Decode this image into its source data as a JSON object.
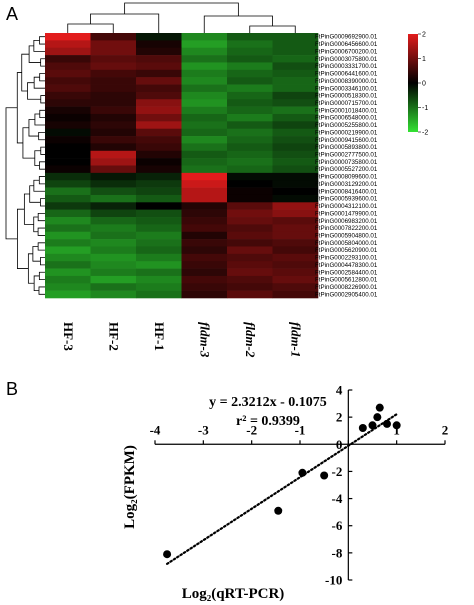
{
  "chart_data": [
    {
      "type": "heatmap",
      "panel_label": "A",
      "columns": [
        "HF-3",
        "HF-2",
        "HF-1",
        "fldm-3",
        "fldm-2",
        "fldm-1"
      ],
      "italic_columns": [
        false,
        false,
        false,
        true,
        true,
        true
      ],
      "rows": [
        "FtPinG0009692900.01",
        "FtPinG0006456600.01",
        "FtPinG0006700200.01",
        "FtPinG0003075800.01",
        "FtPinG0003331700.01",
        "FtPinG0006441600.01",
        "FtPinG0008390000.01",
        "FtPinG0003346100.01",
        "FtPinG0000518300.01",
        "FtPinG0000715700.01",
        "FtPinG0001018400.01",
        "FtPinG0006548000.01",
        "FtPinG0005255800.01",
        "FtPinG0000219900.01",
        "FtPinG0009415600.01",
        "FtPinG0005893800.01",
        "FtPinG0002777500.01",
        "FtPinG0000735800.01",
        "FtPinG0005527200.01",
        "FtPinG0008099600.01",
        "FtPinG0003129200.01",
        "FtPinG0008416400.01",
        "FtPinG0005939600.01",
        "FtPinG0004312100.01",
        "FtPinG0001479900.01",
        "FtPinG0006983200.01",
        "FtPinG0007822200.01",
        "FtPinG0005904800.01",
        "FtPinG0005804000.01",
        "FtPinG0005620900.01",
        "FtPinG0002293100.01",
        "FtPinG0004478300.01",
        "FtPinG0002584400.01",
        "FtPinG0005612800.01",
        "FtPinG0008226900.01",
        "FtPinG0002905400.01"
      ],
      "values": [
        [
          2.0,
          0.6,
          -0.2,
          -1.2,
          -0.8,
          -0.8
        ],
        [
          1.6,
          1.0,
          0.2,
          -1.4,
          -1.0,
          -0.8
        ],
        [
          1.4,
          1.0,
          0.3,
          -1.2,
          -0.9,
          -0.8
        ],
        [
          0.5,
          0.8,
          0.7,
          -1.0,
          -0.8,
          -0.9
        ],
        [
          0.7,
          0.9,
          0.8,
          -1.3,
          -1.1,
          -0.7
        ],
        [
          0.8,
          0.6,
          0.5,
          -1.1,
          -0.9,
          -0.8
        ],
        [
          0.6,
          0.5,
          0.9,
          -1.2,
          -0.8,
          -0.9
        ],
        [
          0.7,
          0.5,
          0.6,
          -1.0,
          -1.1,
          -0.9
        ],
        [
          0.5,
          0.4,
          0.7,
          -1.2,
          -0.9,
          -0.6
        ],
        [
          0.4,
          0.4,
          1.2,
          -1.3,
          -0.8,
          -0.7
        ],
        [
          0.2,
          0.5,
          1.3,
          -1.1,
          -0.9,
          -1.0
        ],
        [
          0.1,
          0.3,
          1.0,
          -0.9,
          -1.1,
          -0.8
        ],
        [
          0.2,
          0.4,
          1.4,
          -1.0,
          -0.8,
          -0.6
        ],
        [
          -0.1,
          0.3,
          0.8,
          -0.9,
          -1.0,
          -0.8
        ],
        [
          0.1,
          0.5,
          0.6,
          -1.2,
          -0.9,
          -0.7
        ],
        [
          0.0,
          0.3,
          0.5,
          -1.0,
          -0.8,
          -0.6
        ],
        [
          0.0,
          1.6,
          0.3,
          -0.8,
          -0.9,
          -0.7
        ],
        [
          0.0,
          1.4,
          0.1,
          -0.9,
          -1.0,
          -0.8
        ],
        [
          0.1,
          0.9,
          0.2,
          -1.0,
          -0.9,
          -0.7
        ],
        [
          -0.4,
          -0.2,
          -0.3,
          2.0,
          -0.1,
          -0.1
        ],
        [
          -0.6,
          -0.4,
          -0.5,
          1.8,
          0.0,
          -0.1
        ],
        [
          -1.0,
          -0.7,
          -0.6,
          1.6,
          0.1,
          0.0
        ],
        [
          -0.8,
          -1.0,
          -0.8,
          1.6,
          0.1,
          -0.1
        ],
        [
          -0.5,
          -0.3,
          0.0,
          0.3,
          0.8,
          1.3
        ],
        [
          -0.9,
          -0.6,
          -0.7,
          0.4,
          1.0,
          1.2
        ],
        [
          -1.2,
          -0.9,
          -0.8,
          0.5,
          0.9,
          0.8
        ],
        [
          -1.0,
          -1.1,
          -0.9,
          0.6,
          0.7,
          0.9
        ],
        [
          -1.3,
          -1.0,
          -1.1,
          0.3,
          0.8,
          0.9
        ],
        [
          -1.1,
          -1.2,
          -1.0,
          0.5,
          0.6,
          0.7
        ],
        [
          -1.4,
          -1.1,
          -0.9,
          0.4,
          0.9,
          0.6
        ],
        [
          -1.2,
          -1.3,
          -1.1,
          0.6,
          0.7,
          0.8
        ],
        [
          -1.0,
          -1.2,
          -1.3,
          0.5,
          0.8,
          0.7
        ],
        [
          -1.3,
          -1.1,
          -1.0,
          0.4,
          0.9,
          0.8
        ],
        [
          -1.1,
          -1.4,
          -1.2,
          0.6,
          0.7,
          0.9
        ],
        [
          -1.2,
          -1.0,
          -1.1,
          0.5,
          0.6,
          0.7
        ],
        [
          -1.4,
          -1.2,
          -1.0,
          0.4,
          0.8,
          0.6
        ]
      ],
      "color_scale": {
        "min": -2,
        "max": 2,
        "low_color": "#33e233",
        "mid_color": "#000000",
        "high_color": "#e21c1c"
      },
      "colorbar_ticks": [
        "2",
        "1",
        "0",
        "-1",
        "-2"
      ]
    },
    {
      "type": "scatter",
      "panel_label": "B",
      "x": [
        -3.75,
        -1.45,
        -0.95,
        -0.5,
        0.3,
        0.5,
        0.6,
        0.65,
        0.8,
        1.0
      ],
      "y": [
        -8.1,
        -4.9,
        -2.1,
        -2.3,
        1.2,
        1.4,
        2.0,
        2.7,
        1.5,
        1.4
      ],
      "trendline": {
        "slope": 2.3212,
        "intercept": -0.1075,
        "x_range": [
          -3.75,
          1.0
        ],
        "style": "dotted"
      },
      "equation": "y = 2.3212x - 0.1075",
      "r_squared": "r² = 0.9399",
      "xlim": [
        -4,
        2
      ],
      "ylim": [
        -10,
        4
      ],
      "xticks": [
        -4,
        -3,
        -2,
        -1,
        0,
        1,
        2
      ],
      "yticks": [
        4,
        2,
        0,
        -2,
        -4,
        -6,
        -8,
        -10
      ],
      "xlabel": "Log₂(qRT-PCR)",
      "ylabel": "Log₂(FPKM)"
    }
  ]
}
